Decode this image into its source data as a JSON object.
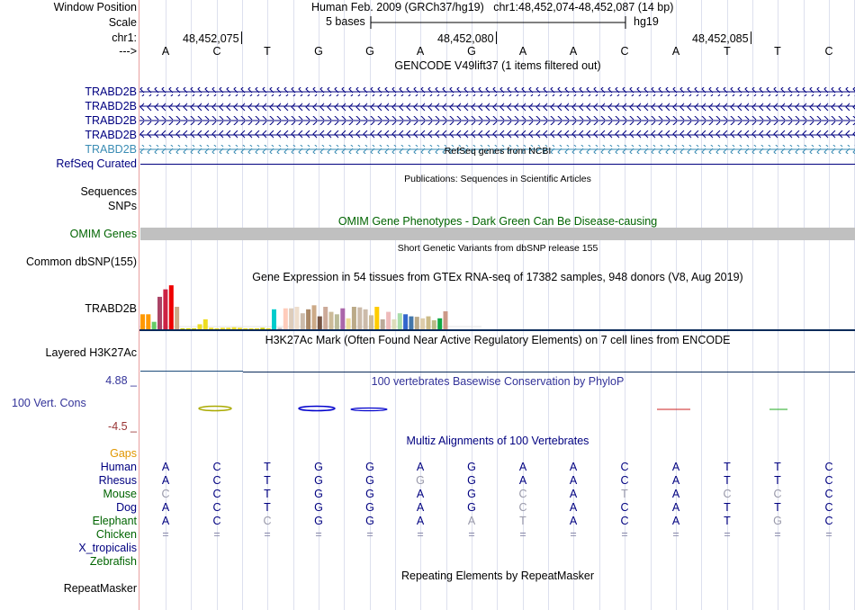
{
  "header": {
    "window_position_label": "Window Position",
    "scale_label": "Scale",
    "chrom_label": "chr1:",
    "arrow_label": "--->",
    "assembly": "Human Feb. 2009 (GRCh37/hg19)",
    "position": "chr1:48,452,074-48,452,087 (14 bp)",
    "scale_text": "5 bases",
    "db": "hg19",
    "ticks": [
      "48,452,075",
      "48,452,080",
      "48,452,085"
    ],
    "bases": [
      "A",
      "C",
      "T",
      "G",
      "G",
      "A",
      "G",
      "A",
      "A",
      "C",
      "A",
      "T",
      "T",
      "C"
    ]
  },
  "gencode": {
    "title": "GENCODE V49lift37 (1 items filtered out)",
    "genes": [
      "TRABD2B",
      "TRABD2B",
      "TRABD2B",
      "TRABD2B",
      "TRABD2B"
    ]
  },
  "refseq": {
    "title": "RefSeq genes from NCBI",
    "label": "RefSeq Curated"
  },
  "publications": {
    "title": "Publications: Sequences in Scientific Articles",
    "labels": [
      "Sequences",
      "SNPs"
    ]
  },
  "omim": {
    "title": "OMIM Gene Phenotypes - Dark Green Can Be Disease-causing",
    "label": "OMIM Genes"
  },
  "dbsnp": {
    "title": "Short Genetic Variants from dbSNP release 155",
    "label": "Common dbSNP(155)"
  },
  "gtex": {
    "title": "Gene Expression in 54 tissues from GTEx RNA-seq of 17382 samples, 948 donors (V8, Aug 2019)",
    "label": "TRABD2B",
    "chart_data": {
      "type": "bar",
      "title": "Gene Expression in 54 tissues from GTEx RNA-seq of 17382 samples, 948 donors (V8, Aug 2019)",
      "values": [
        3,
        3,
        1.5,
        6.5,
        8,
        8.8,
        4.5,
        0.2,
        0.2,
        0.2,
        1,
        2,
        0.3,
        0.2,
        0.3,
        0.3,
        0.4,
        0.3,
        0.2,
        0.2,
        0.2,
        0.3,
        0.2,
        4,
        0.3,
        4.2,
        4.2,
        4.5,
        3.2,
        4,
        4.8,
        2.6,
        4.5,
        3.5,
        3,
        4.2,
        2.2,
        4.5,
        4.4,
        4,
        2.8,
        4.5,
        2,
        3.5,
        2,
        3.2,
        3,
        2.6,
        2.5,
        2.2,
        2.6,
        1.8,
        2.2,
        3.6
      ],
      "colors": [
        "#ff9900",
        "#ff9900",
        "#66cc66",
        "#aa4466",
        "#cc2244",
        "#ee0000",
        "#ccaa88",
        "#cccc00",
        "#dddd00",
        "#cccc00",
        "#eedd22",
        "#eedd22",
        "#eedd22",
        "#eedd22",
        "#eedd22",
        "#eedd22",
        "#eedd22",
        "#eedd22",
        "#eedd22",
        "#eedd22",
        "#eedd22",
        "#cccc00",
        "#eedd22",
        "#00cccc",
        "#ccbbbb",
        "#ffccbb",
        "#ddccbb",
        "#eeddcc",
        "#ccbbaa",
        "#aa8866",
        "#ccaa88",
        "#775544",
        "#ccaa99",
        "#ccbb99",
        "#bbbb99",
        "#aa66aa",
        "#eedd99",
        "#bbaa88",
        "#ccbbaa",
        "#ccbbaa",
        "#ccbb99",
        "#ffcc00",
        "#bbaa99",
        "#eebbbb",
        "#ddddbb",
        "#aaddaa",
        "#3366cc",
        "#4477aa",
        "#bbaa88",
        "#ddccaa",
        "#ccbb88",
        "#bbbb88",
        "#11aa44",
        "#cc9988"
      ],
      "ymax": 9
    }
  },
  "h3k27ac": {
    "title": "H3K27Ac Mark (Often Found Near Active Regulatory Elements) on 7 cell lines from ENCODE",
    "label": "Layered H3K27Ac"
  },
  "cons": {
    "title": "100 vertebrates Basewise Conservation by PhyloP",
    "label": "100 Vert. Cons",
    "max": "4.88 _",
    "min": "-4.5 _"
  },
  "multiz": {
    "title": "Multiz Alignments of 100 Vertebrates",
    "gaps_label": "Gaps",
    "species": [
      {
        "name": "Human",
        "color": "#000080",
        "bases": [
          "A",
          "C",
          "T",
          "G",
          "G",
          "A",
          "G",
          "A",
          "A",
          "C",
          "A",
          "T",
          "T",
          "C"
        ]
      },
      {
        "name": "Rhesus",
        "color": "#000080",
        "bases": [
          "A",
          "C",
          "T",
          "G",
          "G",
          "G",
          "G",
          "A",
          "A",
          "C",
          "A",
          "T",
          "T",
          "C"
        ]
      },
      {
        "name": "Mouse",
        "color": "#006400",
        "bases": [
          "C",
          "C",
          "T",
          "G",
          "G",
          "A",
          "G",
          "C",
          "A",
          "T",
          "A",
          "C",
          "C",
          "C"
        ]
      },
      {
        "name": "Dog",
        "color": "#000080",
        "bases": [
          "A",
          "C",
          "T",
          "G",
          "G",
          "A",
          "G",
          "C",
          "A",
          "C",
          "A",
          "T",
          "T",
          "C"
        ]
      },
      {
        "name": "Elephant",
        "color": "#006400",
        "bases": [
          "A",
          "C",
          "C",
          "G",
          "G",
          "A",
          "A",
          "T",
          "A",
          "C",
          "A",
          "T",
          "G",
          "C"
        ]
      },
      {
        "name": "Chicken",
        "color": "#006400",
        "bases": [
          "=",
          "=",
          "=",
          "=",
          "=",
          "=",
          "=",
          "=",
          "=",
          "=",
          "=",
          "=",
          "=",
          "="
        ]
      },
      {
        "name": "X_tropicalis",
        "color": "#000080",
        "bases": []
      },
      {
        "name": "Zebrafish",
        "color": "#006400",
        "bases": []
      }
    ]
  },
  "repeatmasker": {
    "title": "Repeating Elements by RepeatMasker",
    "label": "RepeatMasker"
  },
  "colors": {
    "gencode": "#000080",
    "gencode_light": "#3a8cb4",
    "omim": "#006400",
    "omim_bar": "#c0c0c0",
    "cons_max": "#333399",
    "cons_min": "#993333",
    "gaps": "#e09600"
  }
}
